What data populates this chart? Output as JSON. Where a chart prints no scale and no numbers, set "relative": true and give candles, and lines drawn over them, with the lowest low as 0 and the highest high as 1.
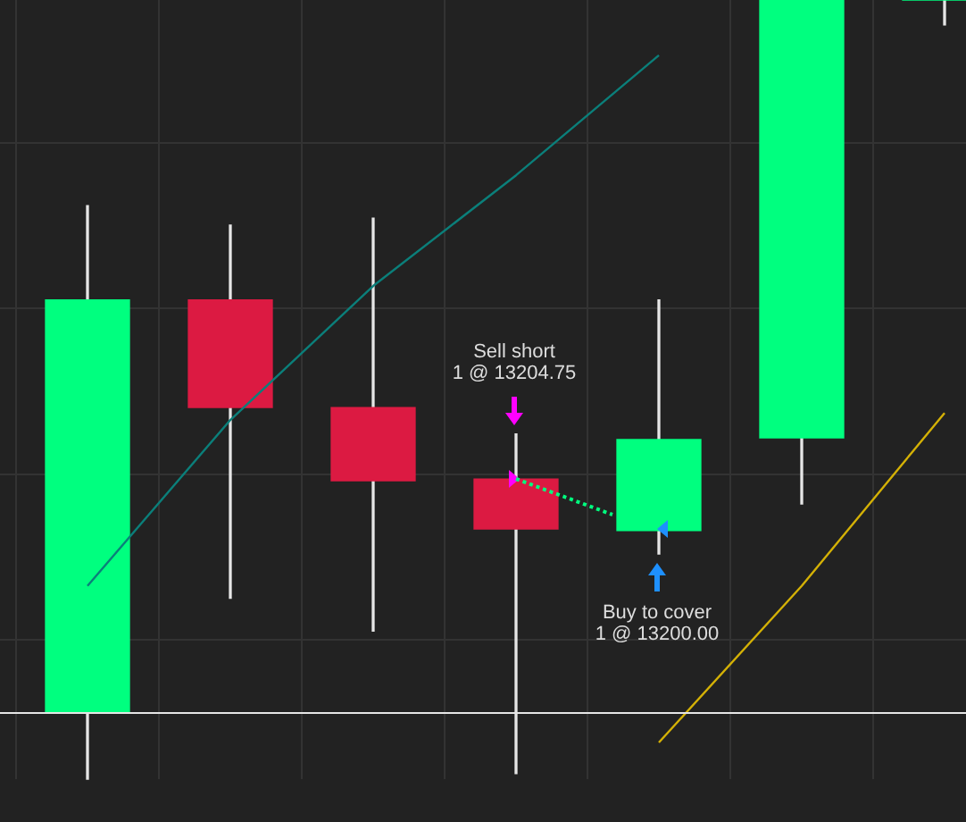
{
  "chart_data": {
    "type": "candlestick",
    "relative": true,
    "grid": true,
    "categories": [
      null,
      null,
      null,
      null,
      null,
      null,
      null
    ],
    "ohlc": [
      [
        0.085,
        0.736,
        0,
        0.615
      ],
      [
        0.615,
        0.711,
        0.232,
        0.477
      ],
      [
        0.477,
        0.72,
        0.19,
        0.383
      ],
      [
        0.385,
        0.443,
        0.007,
        0.321
      ],
      [
        0.319,
        0.615,
        0.289,
        0.436
      ],
      [
        0.438,
        1,
        0.353,
        1
      ],
      [
        1,
        1,
        0.968,
        1
      ]
    ],
    "colors": [
      "#00ff7f",
      "#dc1a42",
      "#dc1a42",
      "#dc1a42",
      "#00ff7f",
      "#00ff7f",
      "#00ff7f"
    ],
    "series": [
      {
        "type": "line",
        "color": "#0b7f7a",
        "values": [
          0.248,
          0.461,
          0.633,
          0.775,
          0.929,
          null,
          null
        ]
      },
      {
        "type": "line",
        "color": "#d4b106",
        "values": [
          null,
          null,
          null,
          null,
          0.047,
          0.248,
          0.47
        ]
      }
    ],
    "ref_lines": [
      {
        "axis": "y",
        "value": 0.085,
        "color": "#e6e6e6"
      }
    ],
    "annotations": [
      "Sell short\n1 @ 13204.75",
      "Buy to cover\n1 @ 13200.00"
    ]
  }
}
